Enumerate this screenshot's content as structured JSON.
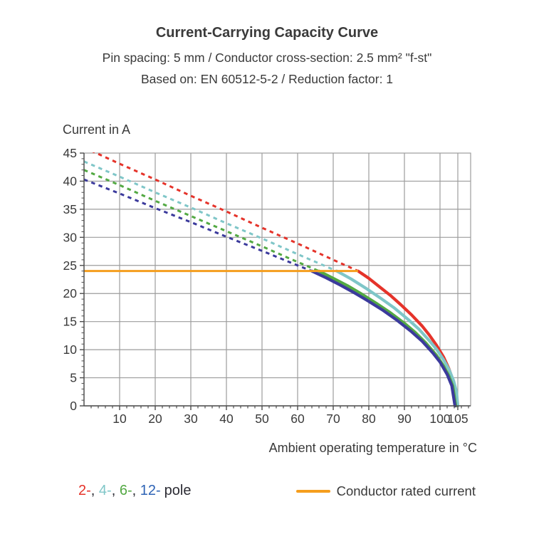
{
  "chart_data": {
    "type": "line",
    "title": "Current-Carrying Capacity Curve",
    "subtitle": "Pin spacing: 5 mm / Conductor cross-section: 2.5 mm² \"f-st\"",
    "subtitle2": "Based on: EN 60512-5-2 / Reduction factor: 1",
    "xlabel": "Ambient operating temperature in °C",
    "ylabel": "Current in A",
    "xlim": [
      0,
      108.6
    ],
    "ylim": [
      0,
      45
    ],
    "x_major_ticks": [
      10,
      20,
      30,
      40,
      50,
      60,
      70,
      80,
      90,
      100,
      105
    ],
    "x_minor_step": 2,
    "y_major_ticks": [
      0,
      5,
      10,
      15,
      20,
      25,
      30,
      35,
      40,
      45
    ],
    "y_minor_step": 1,
    "grid": true,
    "legend_position": "bottom",
    "colors": {
      "grid": "#9C9C9C",
      "axis": "#4D4D4D",
      "text": "#3A3A3A"
    },
    "rated_current": {
      "label": "Conductor rated current",
      "value": 24,
      "x_start": 0,
      "x_end": 77,
      "color": "#F59E1E"
    },
    "series": [
      {
        "name": "2-pole",
        "color": "#E5332A",
        "dashed": [
          [
            0,
            46
          ],
          [
            10,
            43.1
          ],
          [
            20,
            40.3
          ],
          [
            30,
            37.4
          ],
          [
            40,
            34.6
          ],
          [
            50,
            31.7
          ],
          [
            60,
            28.9
          ],
          [
            70,
            26.0
          ],
          [
            77,
            24
          ]
        ],
        "solid": [
          [
            77,
            24
          ],
          [
            80,
            22.7
          ],
          [
            83,
            21.2
          ],
          [
            86,
            19.7
          ],
          [
            89,
            18.0
          ],
          [
            92,
            16.2
          ],
          [
            95,
            14.2
          ],
          [
            97,
            12.6
          ],
          [
            99,
            10.8
          ],
          [
            101,
            8.7
          ],
          [
            102.5,
            6.6
          ],
          [
            103.5,
            4.8
          ],
          [
            104.2,
            2.9
          ],
          [
            104.6,
            0
          ]
        ]
      },
      {
        "name": "4-pole",
        "color": "#7FC6C8",
        "dashed": [
          [
            0,
            43.5
          ],
          [
            10,
            40.8
          ],
          [
            20,
            38.0
          ],
          [
            30,
            35.3
          ],
          [
            40,
            32.5
          ],
          [
            50,
            29.8
          ],
          [
            60,
            27.0
          ],
          [
            71,
            24
          ]
        ],
        "solid": [
          [
            71,
            24
          ],
          [
            75,
            22.6
          ],
          [
            79,
            21.0
          ],
          [
            83,
            19.3
          ],
          [
            87,
            17.5
          ],
          [
            91,
            15.4
          ],
          [
            94,
            13.7
          ],
          [
            97,
            11.6
          ],
          [
            99,
            10.1
          ],
          [
            101,
            8.2
          ],
          [
            102.5,
            6.5
          ],
          [
            103.8,
            4.5
          ],
          [
            104.6,
            2.6
          ],
          [
            105,
            0
          ]
        ]
      },
      {
        "name": "6-pole",
        "color": "#53A943",
        "dashed": [
          [
            0,
            42
          ],
          [
            10,
            39.3
          ],
          [
            20,
            36.5
          ],
          [
            30,
            33.8
          ],
          [
            40,
            31.1
          ],
          [
            50,
            28.4
          ],
          [
            60,
            25.6
          ],
          [
            66,
            24
          ]
        ],
        "solid": [
          [
            66,
            24
          ],
          [
            70,
            22.7
          ],
          [
            74,
            21.4
          ],
          [
            78,
            19.9
          ],
          [
            82,
            18.3
          ],
          [
            86,
            16.6
          ],
          [
            90,
            14.7
          ],
          [
            93,
            13.1
          ],
          [
            96,
            11.2
          ],
          [
            99,
            9.0
          ],
          [
            101,
            7.1
          ],
          [
            102.5,
            5.3
          ],
          [
            103.6,
            3.5
          ],
          [
            104.4,
            0
          ]
        ]
      },
      {
        "name": "12-pole",
        "color": "#3B3A9C",
        "dashed": [
          [
            0,
            40.3
          ],
          [
            10,
            37.8
          ],
          [
            20,
            35.2
          ],
          [
            30,
            32.7
          ],
          [
            40,
            30.1
          ],
          [
            50,
            27.6
          ],
          [
            60,
            25.0
          ],
          [
            64,
            24
          ]
        ],
        "solid": [
          [
            64,
            24
          ],
          [
            68,
            22.8
          ],
          [
            72,
            21.5
          ],
          [
            76,
            20.1
          ],
          [
            80,
            18.6
          ],
          [
            84,
            17.0
          ],
          [
            88,
            15.2
          ],
          [
            92,
            13.2
          ],
          [
            95,
            11.5
          ],
          [
            98,
            9.4
          ],
          [
            100,
            7.8
          ],
          [
            102,
            5.6
          ],
          [
            103.3,
            3.6
          ],
          [
            104.2,
            0
          ]
        ]
      }
    ]
  },
  "legend": {
    "pole_items": [
      {
        "label": "2-",
        "color": "#E5332A"
      },
      {
        "label": "4-",
        "color": "#7FC6C8"
      },
      {
        "label": "6-",
        "color": "#53A943"
      },
      {
        "label": "12-",
        "color": "#2E63B5"
      }
    ],
    "separator": ", ",
    "suffix": "pole"
  }
}
